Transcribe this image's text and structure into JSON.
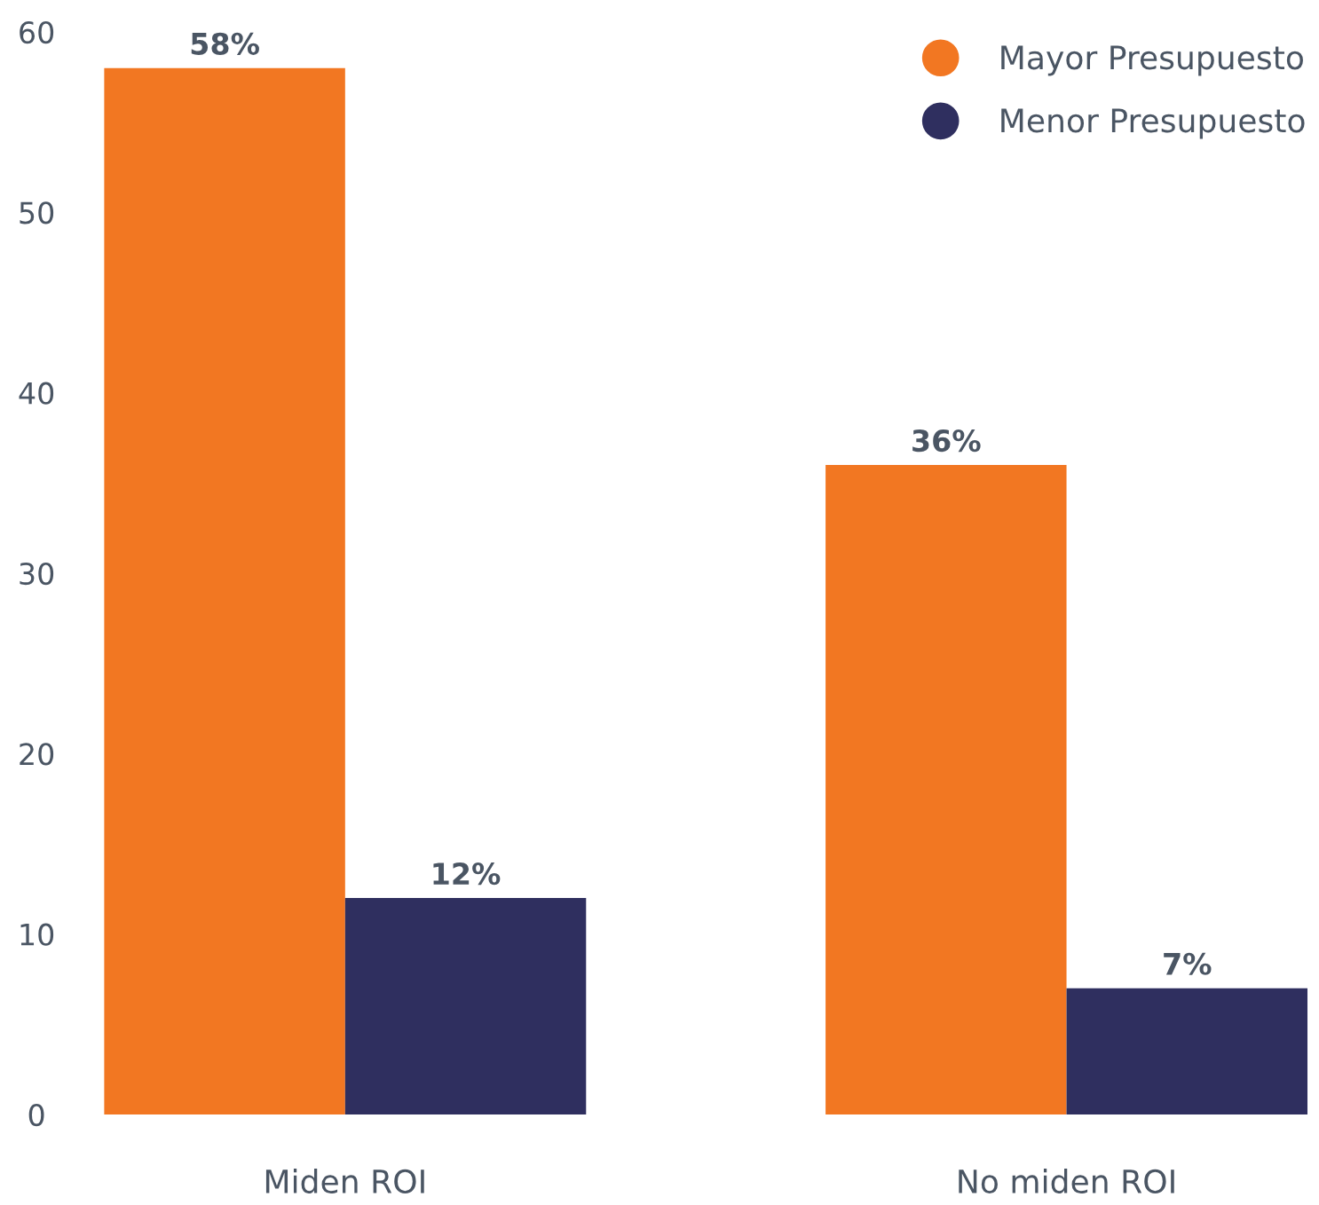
{
  "chart_data": {
    "type": "bar",
    "categories": [
      "Miden ROI",
      "No miden ROI"
    ],
    "series": [
      {
        "name": "Mayor Presupuesto",
        "color": "#f27722",
        "values": [
          58,
          36
        ],
        "value_labels": [
          "58%",
          "36%"
        ]
      },
      {
        "name": "Menor Presupuesto",
        "color": "#2f2f5f",
        "values": [
          12,
          7
        ],
        "value_labels": [
          "12%",
          "7%"
        ]
      }
    ],
    "ylim": [
      0,
      60
    ],
    "yticks": [
      0,
      10,
      20,
      30,
      40,
      50,
      60
    ],
    "grid": false,
    "legend": "top right"
  }
}
